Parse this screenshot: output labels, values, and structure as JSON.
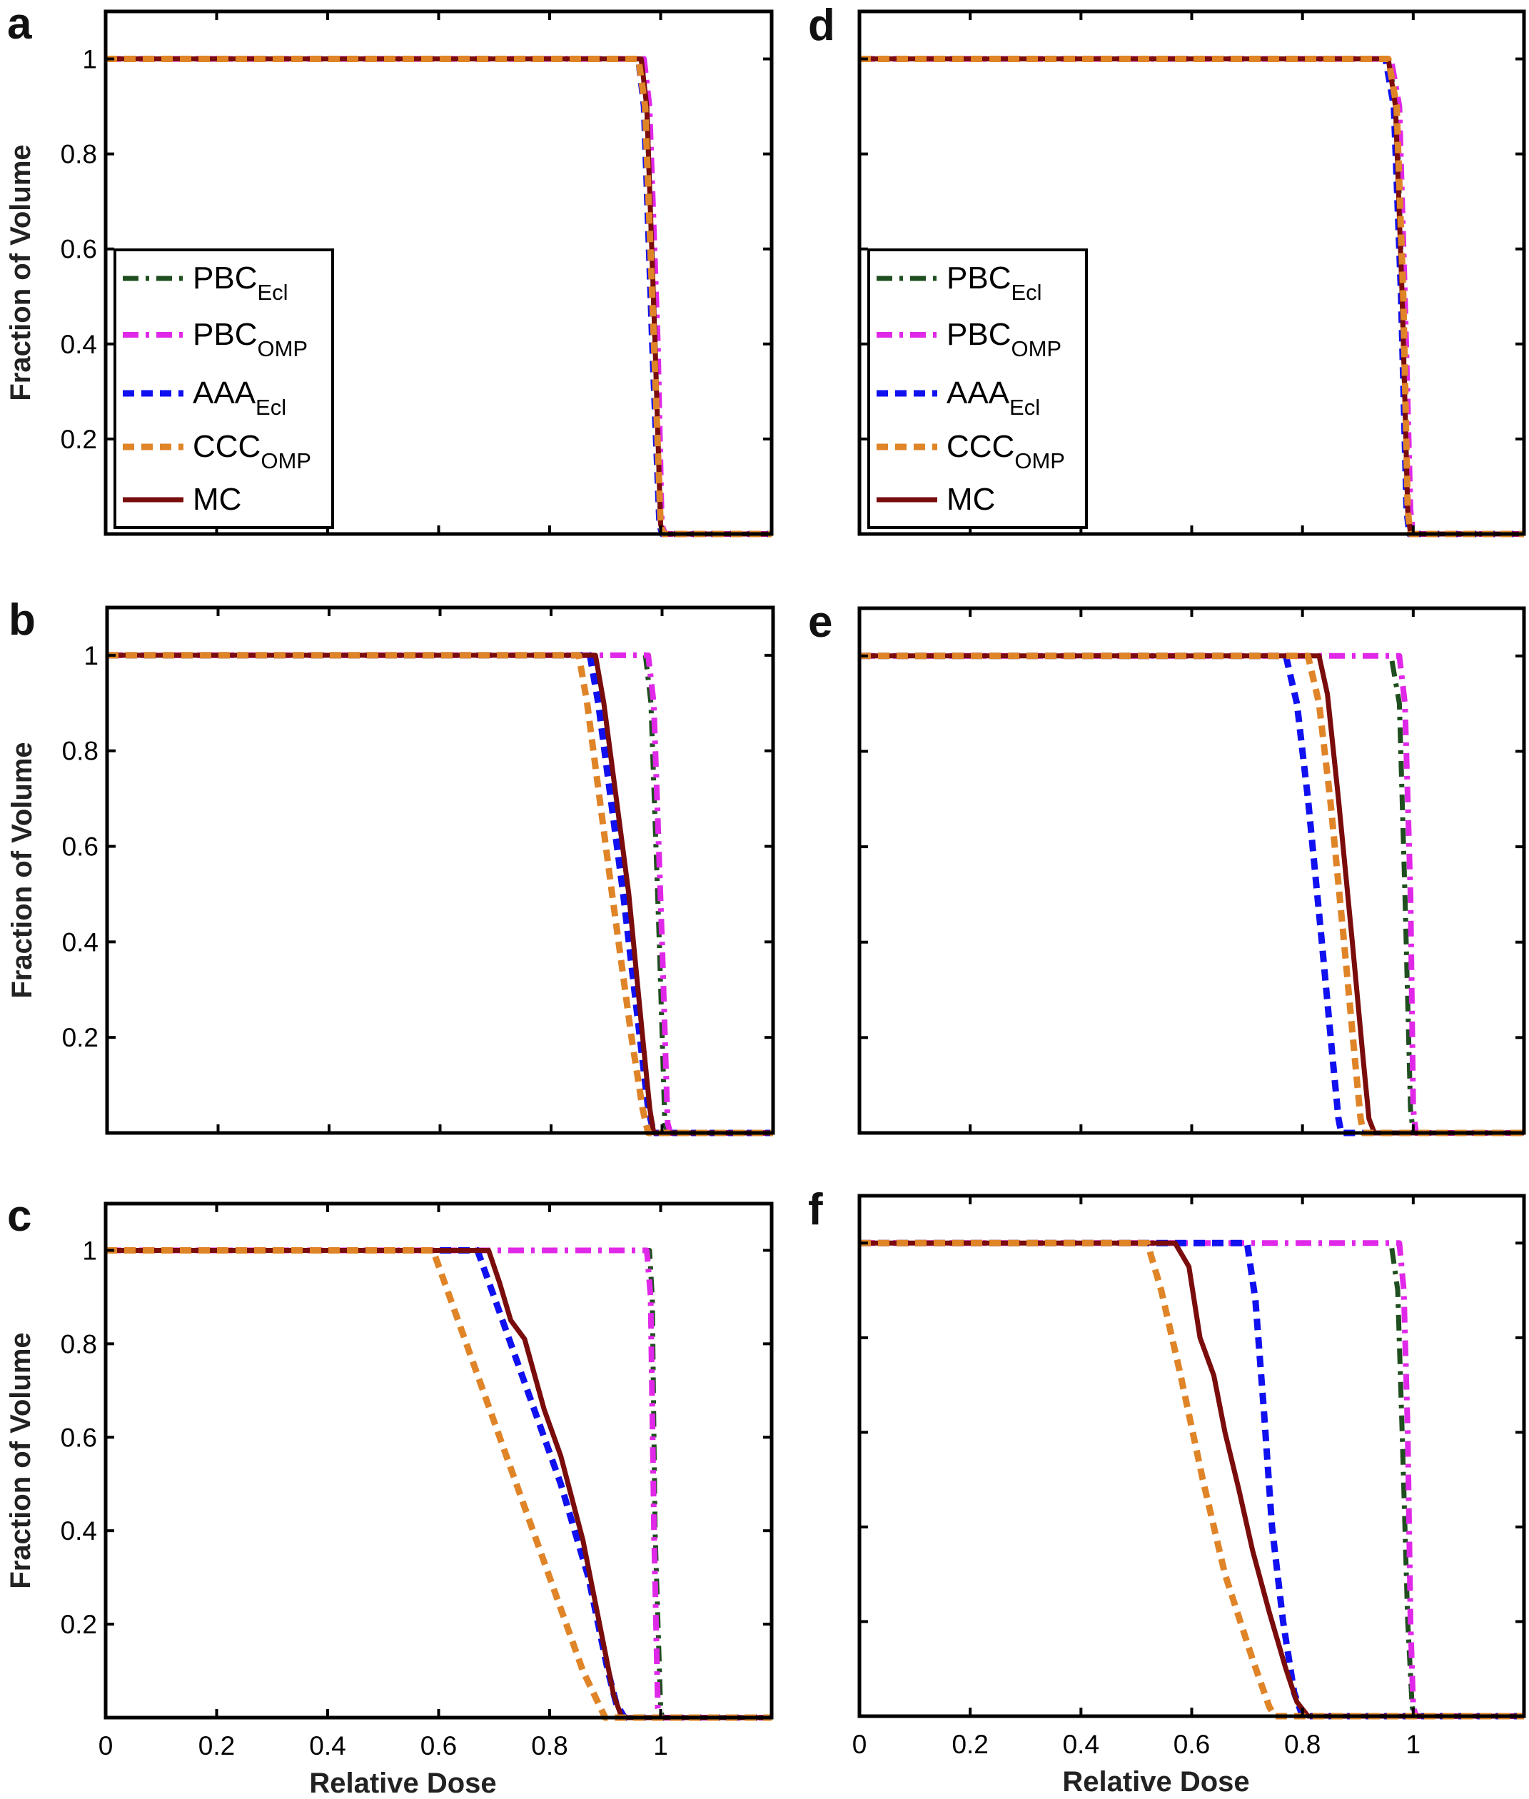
{
  "chart_data": {
    "type": "line",
    "layout": "3x2 grid of panels",
    "xlabel": "Relative Dose",
    "ylabel": "Fraction of Volume",
    "xlim": [
      0,
      1.2
    ],
    "ylim": [
      0,
      1.1
    ],
    "xticks": [
      "0",
      "0.2",
      "0.4",
      "0.6",
      "0.8",
      "1"
    ],
    "yticks": [
      "0.2",
      "0.4",
      "0.6",
      "0.8",
      "1"
    ],
    "grid": false,
    "legend_placement": "middle-left (panels a and d)",
    "series_styles": [
      {
        "key": "PBC_Ecl",
        "name": "PBC",
        "sub": "Ecl",
        "color": "#1f4f1f",
        "style": "dash-dot"
      },
      {
        "key": "PBC_OMP",
        "name": "PBC",
        "sub": "OMP",
        "color": "#e028e8",
        "style": "dash-dot"
      },
      {
        "key": "AAA_Ecl",
        "name": "AAA",
        "sub": "Ecl",
        "color": "#1010f0",
        "style": "dashed"
      },
      {
        "key": "CCC_OMP",
        "name": "CCC",
        "sub": "OMP",
        "color": "#e08428",
        "style": "dashed"
      },
      {
        "key": "MC",
        "name": "MC",
        "sub": "",
        "color": "#7a0c0c",
        "style": "solid"
      }
    ],
    "panels": [
      {
        "label": "a",
        "legend": true,
        "series": {
          "PBC_Ecl": [
            [
              0,
              1
            ],
            [
              0.965,
              1
            ],
            [
              0.975,
              0.9
            ],
            [
              0.99,
              0.4
            ],
            [
              1.0,
              0.02
            ],
            [
              1.005,
              0
            ],
            [
              1.2,
              0
            ]
          ],
          "PBC_OMP": [
            [
              0,
              1
            ],
            [
              0.97,
              1
            ],
            [
              0.98,
              0.9
            ],
            [
              0.995,
              0.4
            ],
            [
              1.002,
              0.02
            ],
            [
              1.008,
              0
            ],
            [
              1.2,
              0
            ]
          ],
          "AAA_Ecl": [
            [
              0,
              1
            ],
            [
              0.96,
              1
            ],
            [
              0.97,
              0.9
            ],
            [
              0.985,
              0.4
            ],
            [
              0.998,
              0.02
            ],
            [
              1.003,
              0
            ],
            [
              1.2,
              0
            ]
          ],
          "CCC_OMP": [
            [
              0,
              1
            ],
            [
              0.96,
              1
            ],
            [
              0.972,
              0.9
            ],
            [
              0.988,
              0.4
            ],
            [
              1.0,
              0.02
            ],
            [
              1.005,
              0
            ],
            [
              1.2,
              0
            ]
          ],
          "MC": [
            [
              0,
              1
            ],
            [
              0.965,
              1
            ],
            [
              0.975,
              0.9
            ],
            [
              0.99,
              0.4
            ],
            [
              1.0,
              0.02
            ],
            [
              1.005,
              0
            ],
            [
              1.2,
              0
            ]
          ]
        }
      },
      {
        "label": "b",
        "legend": false,
        "series": {
          "PBC_Ecl": [
            [
              0,
              1
            ],
            [
              0.97,
              1
            ],
            [
              0.98,
              0.9
            ],
            [
              0.995,
              0.4
            ],
            [
              1.005,
              0.02
            ],
            [
              1.01,
              0
            ],
            [
              1.2,
              0
            ]
          ],
          "PBC_OMP": [
            [
              0,
              1
            ],
            [
              0.975,
              1
            ],
            [
              0.985,
              0.9
            ],
            [
              1.0,
              0.4
            ],
            [
              1.01,
              0.02
            ],
            [
              1.015,
              0
            ],
            [
              1.2,
              0
            ]
          ],
          "AAA_Ecl": [
            [
              0,
              1
            ],
            [
              0.87,
              1
            ],
            [
              0.885,
              0.9
            ],
            [
              0.93,
              0.5
            ],
            [
              0.96,
              0.2
            ],
            [
              0.975,
              0.05
            ],
            [
              0.985,
              0
            ],
            [
              1.2,
              0
            ]
          ],
          "CCC_OMP": [
            [
              0,
              1
            ],
            [
              0.85,
              1
            ],
            [
              0.865,
              0.9
            ],
            [
              0.91,
              0.5
            ],
            [
              0.945,
              0.2
            ],
            [
              0.965,
              0.05
            ],
            [
              0.975,
              0
            ],
            [
              1.2,
              0
            ]
          ],
          "MC": [
            [
              0,
              1
            ],
            [
              0.88,
              1
            ],
            [
              0.895,
              0.9
            ],
            [
              0.94,
              0.5
            ],
            [
              0.965,
              0.2
            ],
            [
              0.978,
              0.05
            ],
            [
              0.985,
              0
            ],
            [
              1.2,
              0
            ]
          ]
        }
      },
      {
        "label": "c",
        "legend": false,
        "series": {
          "PBC_Ecl": [
            [
              0,
              1
            ],
            [
              0.98,
              1
            ],
            [
              0.985,
              0.9
            ],
            [
              0.99,
              0.4
            ],
            [
              1.0,
              0.02
            ],
            [
              1.003,
              0
            ],
            [
              1.2,
              0
            ]
          ],
          "PBC_OMP": [
            [
              0,
              1
            ],
            [
              0.975,
              1
            ],
            [
              0.982,
              0.9
            ],
            [
              0.988,
              0.4
            ],
            [
              0.995,
              0.02
            ],
            [
              1.0,
              0
            ],
            [
              1.2,
              0
            ]
          ],
          "AAA_Ecl": [
            [
              0,
              1
            ],
            [
              0.67,
              1
            ],
            [
              0.7,
              0.9
            ],
            [
              0.76,
              0.7
            ],
            [
              0.82,
              0.5
            ],
            [
              0.87,
              0.3
            ],
            [
              0.905,
              0.1
            ],
            [
              0.92,
              0.03
            ],
            [
              0.935,
              0
            ],
            [
              1.2,
              0
            ]
          ],
          "CCC_OMP": [
            [
              0,
              1
            ],
            [
              0.59,
              1
            ],
            [
              0.62,
              0.9
            ],
            [
              0.68,
              0.7
            ],
            [
              0.74,
              0.5
            ],
            [
              0.8,
              0.3
            ],
            [
              0.86,
              0.1
            ],
            [
              0.9,
              0
            ],
            [
              1.2,
              0
            ]
          ],
          "MC": [
            [
              0,
              1
            ],
            [
              0.69,
              1
            ],
            [
              0.71,
              0.93
            ],
            [
              0.73,
              0.85
            ],
            [
              0.755,
              0.81
            ],
            [
              0.79,
              0.66
            ],
            [
              0.82,
              0.56
            ],
            [
              0.86,
              0.38
            ],
            [
              0.89,
              0.2
            ],
            [
              0.915,
              0.05
            ],
            [
              0.93,
              0
            ],
            [
              1.2,
              0
            ]
          ]
        }
      },
      {
        "label": "d",
        "legend": true,
        "series": {
          "PBC_Ecl": [
            [
              0,
              1
            ],
            [
              0.955,
              1
            ],
            [
              0.97,
              0.9
            ],
            [
              0.98,
              0.5
            ],
            [
              0.99,
              0.05
            ],
            [
              0.995,
              0
            ],
            [
              1.2,
              0
            ]
          ],
          "PBC_OMP": [
            [
              0,
              1
            ],
            [
              0.96,
              1
            ],
            [
              0.975,
              0.9
            ],
            [
              0.985,
              0.5
            ],
            [
              0.995,
              0.05
            ],
            [
              1.0,
              0
            ],
            [
              1.2,
              0
            ]
          ],
          "AAA_Ecl": [
            [
              0,
              1
            ],
            [
              0.95,
              1
            ],
            [
              0.965,
              0.9
            ],
            [
              0.978,
              0.5
            ],
            [
              0.988,
              0.05
            ],
            [
              0.993,
              0
            ],
            [
              1.2,
              0
            ]
          ],
          "CCC_OMP": [
            [
              0,
              1
            ],
            [
              0.955,
              1
            ],
            [
              0.97,
              0.9
            ],
            [
              0.982,
              0.5
            ],
            [
              0.99,
              0.05
            ],
            [
              0.995,
              0
            ],
            [
              1.2,
              0
            ]
          ],
          "MC": [
            [
              0,
              1
            ],
            [
              0.955,
              1
            ],
            [
              0.968,
              0.9
            ],
            [
              0.98,
              0.5
            ],
            [
              0.99,
              0.05
            ],
            [
              0.995,
              0
            ],
            [
              1.2,
              0
            ]
          ]
        }
      },
      {
        "label": "e",
        "legend": false,
        "series": {
          "PBC_Ecl": [
            [
              0,
              1
            ],
            [
              0.96,
              1
            ],
            [
              0.975,
              0.9
            ],
            [
              0.985,
              0.5
            ],
            [
              0.995,
              0.05
            ],
            [
              1.0,
              0
            ],
            [
              1.2,
              0
            ]
          ],
          "PBC_OMP": [
            [
              0,
              1
            ],
            [
              0.975,
              1
            ],
            [
              0.985,
              0.9
            ],
            [
              0.995,
              0.5
            ],
            [
              1.0,
              0.05
            ],
            [
              1.005,
              0
            ],
            [
              1.2,
              0
            ]
          ],
          "AAA_Ecl": [
            [
              0,
              1
            ],
            [
              0.77,
              1
            ],
            [
              0.79,
              0.9
            ],
            [
              0.81,
              0.7
            ],
            [
              0.835,
              0.4
            ],
            [
              0.855,
              0.15
            ],
            [
              0.865,
              0.03
            ],
            [
              0.87,
              0
            ],
            [
              1.2,
              0
            ]
          ],
          "CCC_OMP": [
            [
              0,
              1
            ],
            [
              0.81,
              1
            ],
            [
              0.83,
              0.9
            ],
            [
              0.85,
              0.7
            ],
            [
              0.875,
              0.4
            ],
            [
              0.895,
              0.15
            ],
            [
              0.905,
              0.03
            ],
            [
              0.91,
              0
            ],
            [
              1.2,
              0
            ]
          ],
          "MC": [
            [
              0,
              1
            ],
            [
              0.83,
              1
            ],
            [
              0.845,
              0.92
            ],
            [
              0.865,
              0.7
            ],
            [
              0.89,
              0.4
            ],
            [
              0.91,
              0.15
            ],
            [
              0.92,
              0.03
            ],
            [
              0.93,
              0
            ],
            [
              1.2,
              0
            ]
          ]
        }
      },
      {
        "label": "f",
        "legend": false,
        "series": {
          "PBC_Ecl": [
            [
              0,
              1
            ],
            [
              0.96,
              1
            ],
            [
              0.972,
              0.9
            ],
            [
              0.98,
              0.6
            ],
            [
              0.99,
              0.2
            ],
            [
              0.998,
              0.02
            ],
            [
              1.003,
              0
            ],
            [
              1.2,
              0
            ]
          ],
          "PBC_OMP": [
            [
              0,
              1
            ],
            [
              0.975,
              1
            ],
            [
              0.983,
              0.9
            ],
            [
              0.99,
              0.6
            ],
            [
              0.995,
              0.2
            ],
            [
              1.0,
              0.02
            ],
            [
              1.005,
              0
            ],
            [
              1.2,
              0
            ]
          ],
          "AAA_Ecl": [
            [
              0,
              1
            ],
            [
              0.7,
              1
            ],
            [
              0.715,
              0.88
            ],
            [
              0.73,
              0.65
            ],
            [
              0.745,
              0.4
            ],
            [
              0.765,
              0.2
            ],
            [
              0.785,
              0.05
            ],
            [
              0.8,
              0
            ],
            [
              1.2,
              0
            ]
          ],
          "CCC_OMP": [
            [
              0,
              1
            ],
            [
              0.52,
              1
            ],
            [
              0.545,
              0.9
            ],
            [
              0.58,
              0.72
            ],
            [
              0.62,
              0.5
            ],
            [
              0.66,
              0.3
            ],
            [
              0.71,
              0.12
            ],
            [
              0.74,
              0.02
            ],
            [
              0.75,
              0
            ],
            [
              1.2,
              0
            ]
          ],
          "MC": [
            [
              0,
              1
            ],
            [
              0.57,
              1
            ],
            [
              0.595,
              0.95
            ],
            [
              0.615,
              0.8
            ],
            [
              0.64,
              0.72
            ],
            [
              0.66,
              0.6
            ],
            [
              0.685,
              0.48
            ],
            [
              0.71,
              0.35
            ],
            [
              0.74,
              0.22
            ],
            [
              0.77,
              0.1
            ],
            [
              0.79,
              0.03
            ],
            [
              0.81,
              0
            ],
            [
              1.2,
              0
            ]
          ]
        }
      }
    ]
  }
}
